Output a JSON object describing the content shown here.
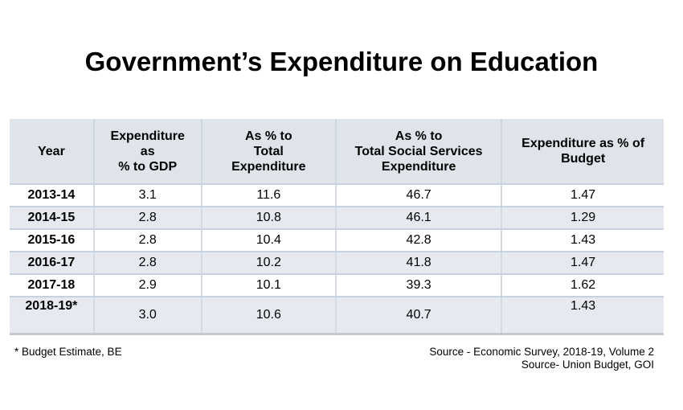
{
  "title": "Government’s Expenditure on Education",
  "table": {
    "headers": [
      [
        "Year"
      ],
      [
        "Expenditure",
        "as",
        "% to GDP"
      ],
      [
        "As % to",
        "Total",
        "Expenditure"
      ],
      [
        "As % to",
        "Total Social Services",
        "Expenditure"
      ],
      [
        "Expenditure as % of",
        "Budget"
      ]
    ],
    "rows": [
      [
        "2013-14",
        "3.1",
        "11.6",
        "46.7",
        "1.47"
      ],
      [
        "2014-15",
        "2.8",
        "10.8",
        "46.1",
        "1.29"
      ],
      [
        "2015-16",
        "2.8",
        "10.4",
        "42.8",
        "1.43"
      ],
      [
        "2016-17",
        "2.8",
        "10.2",
        "41.8",
        "1.47"
      ],
      [
        "2017-18",
        "2.9",
        "10.1",
        "39.3",
        "1.62"
      ],
      [
        "2018-19*",
        "3.0",
        "10.6",
        "40.7",
        "1.43"
      ]
    ]
  },
  "footnote": "* Budget Estimate, BE",
  "sources": [
    "Source - Economic Survey, 2018-19, Volume 2",
    "Source- Union Budget, GOI"
  ]
}
